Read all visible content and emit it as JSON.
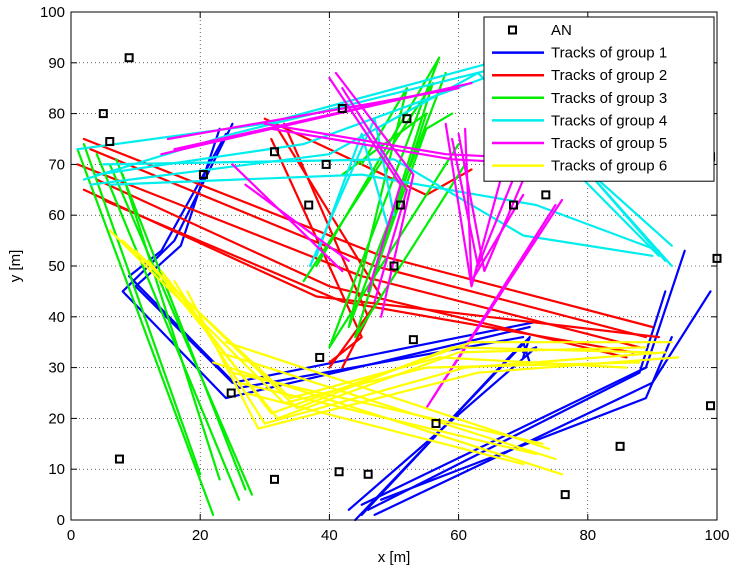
{
  "chart_data": {
    "type": "line",
    "xlabel": "x [m]",
    "ylabel": "y [m]",
    "xlim": [
      0,
      100
    ],
    "ylim": [
      0,
      100
    ],
    "xticks": [
      "0",
      "20",
      "40",
      "60",
      "80",
      "100"
    ],
    "yticks": [
      "0",
      "10",
      "20",
      "30",
      "40",
      "50",
      "60",
      "70",
      "80",
      "90",
      "100"
    ],
    "grid": true,
    "legend_position": "top-right",
    "anchors": {
      "name": "AN",
      "color": "#000000",
      "points": [
        [
          9,
          91
        ],
        [
          5,
          80
        ],
        [
          6,
          74.5
        ],
        [
          20.5,
          68
        ],
        [
          7.5,
          12
        ],
        [
          24.8,
          25
        ],
        [
          31.5,
          72.5
        ],
        [
          31.5,
          8
        ],
        [
          36.8,
          62
        ],
        [
          38.5,
          32
        ],
        [
          39.5,
          70
        ],
        [
          41.5,
          9.5
        ],
        [
          42,
          81
        ],
        [
          46,
          9
        ],
        [
          50,
          50
        ],
        [
          51,
          62
        ],
        [
          52,
          79
        ],
        [
          53,
          35.5
        ],
        [
          56.5,
          19
        ],
        [
          68.5,
          62
        ],
        [
          73.5,
          64
        ],
        [
          76.5,
          5
        ],
        [
          85,
          14.5
        ],
        [
          99,
          22.5
        ],
        [
          99,
          71.5
        ],
        [
          100,
          51.5
        ]
      ]
    },
    "series": [
      {
        "name": "Tracks of group 1",
        "color": "#0000ff",
        "tracks": [
          [
            [
              25,
              78
            ],
            [
              16,
              55
            ],
            [
              8,
              45
            ],
            [
              24,
              24
            ],
            [
              71,
              38
            ]
          ],
          [
            [
              24,
              76
            ],
            [
              14,
              53
            ],
            [
              9,
              48
            ],
            [
              26,
              26
            ],
            [
              70,
              36
            ]
          ],
          [
            [
              23,
              77
            ],
            [
              17,
              54
            ],
            [
              10,
              46
            ],
            [
              25,
              27
            ],
            [
              72,
              39
            ]
          ],
          [
            [
              44,
              0
            ],
            [
              71,
              36
            ],
            [
              70,
              32
            ]
          ],
          [
            [
              45,
              1
            ],
            [
              70,
              35
            ],
            [
              71,
              31
            ]
          ],
          [
            [
              43,
              2
            ],
            [
              72,
              34
            ],
            [
              70,
              33
            ]
          ],
          [
            [
              45,
              3
            ],
            [
              89,
              30
            ],
            [
              95,
              53
            ]
          ],
          [
            [
              46,
              2
            ],
            [
              88,
              29
            ],
            [
              92,
              45
            ]
          ],
          [
            [
              47,
              1
            ],
            [
              90,
              27
            ],
            [
              99,
              45
            ]
          ],
          [
            [
              48,
              4
            ],
            [
              89,
              24
            ],
            [
              93,
              36
            ]
          ]
        ]
      },
      {
        "name": "Tracks of group 2",
        "color": "#ff0000",
        "tracks": [
          [
            [
              2,
              75
            ],
            [
              48,
              52
            ],
            [
              90,
              38
            ]
          ],
          [
            [
              3,
              73
            ],
            [
              47,
              50
            ],
            [
              89,
              36
            ]
          ],
          [
            [
              1,
              70
            ],
            [
              45,
              48
            ],
            [
              88,
              34
            ]
          ],
          [
            [
              4,
              67
            ],
            [
              40,
              46
            ],
            [
              86,
              32
            ]
          ],
          [
            [
              2,
              65
            ],
            [
              38,
              44
            ],
            [
              91,
              36
            ]
          ],
          [
            [
              5,
              63
            ],
            [
              42,
              43
            ],
            [
              87,
              33
            ]
          ],
          [
            [
              30,
              79
            ],
            [
              55,
              64
            ],
            [
              62,
              69
            ]
          ],
          [
            [
              32,
              77
            ],
            [
              48,
              44
            ],
            [
              40,
              30
            ]
          ],
          [
            [
              31,
              75
            ],
            [
              45,
              36
            ],
            [
              40,
              31
            ]
          ],
          [
            [
              33,
              78
            ],
            [
              46,
              40
            ],
            [
              42,
              30
            ]
          ]
        ]
      },
      {
        "name": "Tracks of group 3",
        "color": "#00ee00",
        "tracks": [
          [
            [
              1,
              73
            ],
            [
              22,
              1
            ]
          ],
          [
            [
              2,
              74
            ],
            [
              20,
              9
            ]
          ],
          [
            [
              4,
              72
            ],
            [
              26,
              4
            ]
          ],
          [
            [
              6,
              70
            ],
            [
              28,
              5
            ]
          ],
          [
            [
              8,
              68
            ],
            [
              23,
              8
            ]
          ],
          [
            [
              7,
              71
            ],
            [
              27,
              6
            ]
          ],
          [
            [
              36,
              47
            ],
            [
              56,
              86
            ],
            [
              46,
              45
            ],
            [
              55,
              77
            ],
            [
              59,
              80
            ]
          ],
          [
            [
              38,
              50
            ],
            [
              57,
              91
            ],
            [
              40,
              34
            ],
            [
              60,
              74
            ]
          ],
          [
            [
              42,
              68
            ],
            [
              55,
              80
            ],
            [
              44,
              36
            ],
            [
              61,
              70
            ]
          ],
          [
            [
              45,
              70
            ],
            [
              52,
              85
            ],
            [
              43,
              38
            ],
            [
              58,
              88
            ]
          ]
        ]
      },
      {
        "name": "Tracks of group 4",
        "color": "#00eeee",
        "tracks": [
          [
            [
              1,
              73
            ],
            [
              30,
              78
            ],
            [
              65,
              90
            ],
            [
              93,
              50
            ]
          ],
          [
            [
              2,
              67
            ],
            [
              25,
              76
            ],
            [
              66,
              89
            ],
            [
              92,
              51
            ]
          ],
          [
            [
              3,
              66
            ],
            [
              40,
              72
            ],
            [
              63,
              88
            ],
            [
              91,
              52
            ]
          ],
          [
            [
              4,
              68
            ],
            [
              36,
              74
            ],
            [
              64,
              87
            ],
            [
              93,
              54
            ]
          ],
          [
            [
              5,
              70
            ],
            [
              50,
              71
            ],
            [
              70,
              56
            ],
            [
              90,
              52
            ]
          ],
          [
            [
              6,
              66
            ],
            [
              45,
              68
            ],
            [
              72,
              62
            ],
            [
              91,
              53
            ]
          ],
          [
            [
              37,
              50
            ],
            [
              47,
              79
            ],
            [
              50,
              60
            ]
          ],
          [
            [
              38,
              52
            ],
            [
              45,
              76
            ],
            [
              49,
              58
            ]
          ]
        ]
      },
      {
        "name": "Tracks of group 5",
        "color": "#ff00ff",
        "tracks": [
          [
            [
              15,
              75
            ],
            [
              60,
              85
            ]
          ],
          [
            [
              16,
              73
            ],
            [
              62,
              86
            ]
          ],
          [
            [
              14,
              72
            ],
            [
              55,
              84
            ]
          ],
          [
            [
              25,
              70
            ],
            [
              42,
              49
            ]
          ],
          [
            [
              27,
              66
            ],
            [
              43,
              51
            ]
          ],
          [
            [
              40,
              87
            ],
            [
              51,
              66
            ],
            [
              46,
              45
            ]
          ],
          [
            [
              42,
              85
            ],
            [
              52,
              65
            ],
            [
              47,
              43
            ]
          ],
          [
            [
              41,
              88
            ],
            [
              53,
              68
            ],
            [
              48,
              40
            ]
          ],
          [
            [
              58,
              78
            ],
            [
              62,
              46
            ],
            [
              68,
              74
            ]
          ],
          [
            [
              59,
              75
            ],
            [
              63,
              50
            ],
            [
              70,
              72
            ]
          ],
          [
            [
              60,
              76
            ],
            [
              64,
              49
            ],
            [
              71,
              70
            ]
          ],
          [
            [
              61,
              77
            ],
            [
              62,
              47
            ],
            [
              70,
              64
            ]
          ],
          [
            [
              55,
              22
            ],
            [
              74,
              60
            ]
          ],
          [
            [
              56,
              24
            ],
            [
              75,
              62
            ]
          ],
          [
            [
              57,
              26
            ],
            [
              76,
              63
            ]
          ],
          [
            [
              30,
              78
            ],
            [
              58,
              72
            ],
            [
              90,
              70
            ]
          ],
          [
            [
              31,
              77
            ],
            [
              59,
              71
            ],
            [
              89,
              69
            ]
          ]
        ]
      },
      {
        "name": "Tracks of group 6",
        "color": "#ffff00",
        "tracks": [
          [
            [
              6,
              57
            ],
            [
              33,
              23
            ],
            [
              55,
              30
            ],
            [
              88,
              31
            ]
          ],
          [
            [
              8,
              55
            ],
            [
              34,
              24
            ],
            [
              57,
              32
            ],
            [
              86,
              30
            ]
          ],
          [
            [
              10,
              53
            ],
            [
              35,
              22
            ],
            [
              59,
              34
            ],
            [
              90,
              33
            ]
          ],
          [
            [
              12,
              51
            ],
            [
              32,
              20
            ],
            [
              60,
              33
            ],
            [
              89,
              34
            ]
          ],
          [
            [
              14,
              49
            ],
            [
              31,
              21
            ],
            [
              62,
              35
            ],
            [
              93,
              35
            ]
          ],
          [
            [
              16,
              47
            ],
            [
              30,
              19
            ],
            [
              61,
              30
            ],
            [
              92,
              33
            ]
          ],
          [
            [
              18,
              45
            ],
            [
              29,
              18
            ],
            [
              63,
              29
            ],
            [
              94,
              32
            ]
          ],
          [
            [
              22,
              31
            ],
            [
              76,
              9
            ]
          ],
          [
            [
              23,
              33
            ],
            [
              75,
              12
            ]
          ],
          [
            [
              24,
              35
            ],
            [
              74,
              14
            ]
          ],
          [
            [
              25,
              29
            ],
            [
              73,
              15
            ]
          ],
          [
            [
              26,
              27
            ],
            [
              72,
              13
            ]
          ],
          [
            [
              27,
              25
            ],
            [
              70,
              11
            ]
          ]
        ]
      }
    ]
  }
}
